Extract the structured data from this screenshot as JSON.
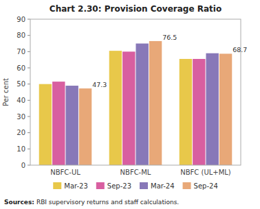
{
  "chart_data": {
    "type": "bar",
    "title": "Chart 2.30: Provision Coverage Ratio",
    "categories": [
      "NBFC-UL",
      "NBFC-ML",
      "NBFC (UL+ML)"
    ],
    "series": [
      {
        "name": "Mar-23",
        "color": "#e8c84a",
        "values": [
          50.0,
          70.5,
          65.5
        ]
      },
      {
        "name": "Sep-23",
        "color": "#d85fa0",
        "values": [
          51.5,
          70.0,
          65.5
        ]
      },
      {
        "name": "Mar-24",
        "color": "#8878b8",
        "values": [
          49.0,
          75.0,
          69.0
        ]
      },
      {
        "name": "Sep-24",
        "color": "#e8a878",
        "values": [
          47.3,
          76.5,
          68.7
        ],
        "data_labels": true
      }
    ],
    "ylabel": "Per cent",
    "ylim": [
      0,
      90
    ],
    "yticks": [
      0,
      10,
      20,
      30,
      40,
      50,
      60,
      70,
      80,
      90
    ],
    "grid": false,
    "legend": "bottom",
    "source_label": "Sources:",
    "source": "RBI supervisory returns and staff calculations."
  }
}
